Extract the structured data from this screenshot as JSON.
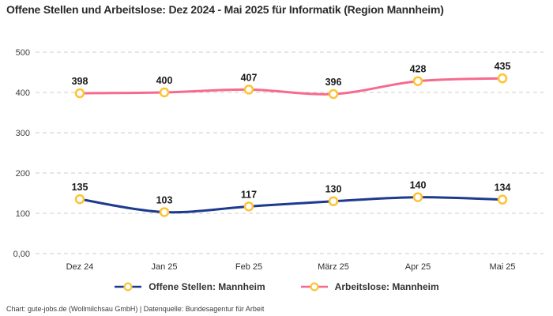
{
  "title": "Offene Stellen und Arbeitslose: Dez 2024 - Mai 2025 für Informatik (Region Mannheim)",
  "footer": {
    "attribution": "Chart: gute-jobs.de (Wollmilchsau GmbH) | Datenquelle: Bundesagentur für Arbeit"
  },
  "chart_data": {
    "type": "line",
    "categories": [
      "Dez 24",
      "Jan 25",
      "Feb 25",
      "März 25",
      "Apr 25",
      "Mai 25"
    ],
    "series": [
      {
        "name": "Offene Stellen: Mannheim",
        "color": "#1e3a8f",
        "values": [
          135,
          103,
          117,
          130,
          140,
          134
        ]
      },
      {
        "name": "Arbeitslose: Mannheim",
        "color": "#f76a8c",
        "values": [
          398,
          400,
          407,
          396,
          428,
          435
        ]
      }
    ],
    "title": "Offene Stellen und Arbeitslose: Dez 2024 - Mai 2025 für Informatik (Region Mannheim)",
    "xlabel": "",
    "ylabel": "",
    "ylim": [
      0,
      500
    ],
    "yticks": [
      {
        "value": 0,
        "label": "0,00"
      },
      {
        "value": 100,
        "label": "100"
      },
      {
        "value": 200,
        "label": "200"
      },
      {
        "value": 300,
        "label": "300"
      },
      {
        "value": 400,
        "label": "400"
      },
      {
        "value": 500,
        "label": "500"
      }
    ],
    "grid": "horizontal-dashed",
    "grid_color": "#cccccc",
    "marker": {
      "fill": "#ffffff",
      "stroke": "#fcc334"
    },
    "legend_position": "bottom",
    "data_labels": true
  }
}
